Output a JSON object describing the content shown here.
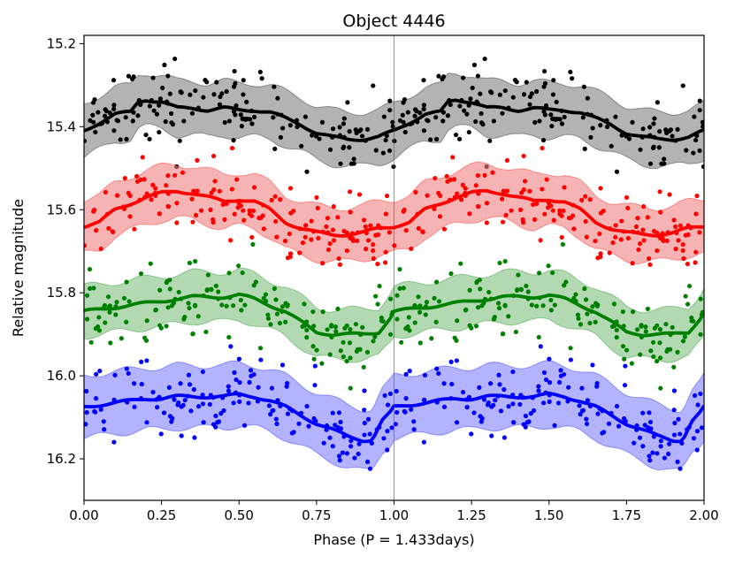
{
  "chart_data": {
    "type": "scatter",
    "title": "Object 4446",
    "xlabel": "Phase (P = 1.433days)",
    "ylabel": "Relative magnitude",
    "xlim": [
      0,
      2
    ],
    "ylim": [
      16.3,
      15.18
    ],
    "y_inverted": true,
    "xticks": [
      "0.00",
      "0.25",
      "0.50",
      "0.75",
      "1.00",
      "1.25",
      "1.50",
      "1.75",
      "2.00"
    ],
    "yticks": [
      "15.2",
      "15.4",
      "15.6",
      "15.8",
      "16.0",
      "16.2"
    ],
    "grid": false,
    "phase_divider_x": 1.0,
    "series": [
      {
        "color": "#000000",
        "band_color": "#808080",
        "curve_phase": [
          0.0,
          0.05,
          0.1,
          0.15,
          0.175,
          0.2,
          0.25,
          0.3,
          0.35,
          0.4,
          0.45,
          0.5,
          0.55,
          0.6,
          0.65,
          0.7,
          0.75,
          0.8,
          0.85,
          0.9,
          0.95,
          1.0
        ],
        "curve_mag": [
          15.41,
          15.39,
          15.37,
          15.365,
          15.34,
          15.335,
          15.34,
          15.355,
          15.355,
          15.36,
          15.355,
          15.36,
          15.36,
          15.365,
          15.38,
          15.395,
          15.415,
          15.425,
          15.43,
          15.43,
          15.425,
          15.41
        ],
        "band_halfwidth": 0.065
      },
      {
        "color": "#ff0000",
        "band_color": "#f08080",
        "curve_phase": [
          0.0,
          0.05,
          0.1,
          0.15,
          0.2,
          0.25,
          0.3,
          0.35,
          0.4,
          0.45,
          0.5,
          0.55,
          0.6,
          0.65,
          0.7,
          0.75,
          0.8,
          0.85,
          0.9,
          0.95,
          1.0
        ],
        "curve_mag": [
          15.64,
          15.63,
          15.6,
          15.585,
          15.57,
          15.56,
          15.555,
          15.56,
          15.57,
          15.58,
          15.575,
          15.58,
          15.6,
          15.63,
          15.645,
          15.655,
          15.66,
          15.66,
          15.655,
          15.645,
          15.64
        ],
        "band_halfwidth": 0.065
      },
      {
        "color": "#008000",
        "band_color": "#80c080",
        "curve_phase": [
          0.0,
          0.05,
          0.1,
          0.15,
          0.2,
          0.25,
          0.3,
          0.35,
          0.4,
          0.45,
          0.5,
          0.55,
          0.6,
          0.65,
          0.7,
          0.75,
          0.8,
          0.85,
          0.9,
          0.95,
          1.0
        ],
        "curve_mag": [
          15.845,
          15.84,
          15.835,
          15.83,
          15.825,
          15.82,
          15.815,
          15.81,
          15.81,
          15.81,
          15.805,
          15.815,
          15.83,
          15.845,
          15.87,
          15.895,
          15.9,
          15.9,
          15.9,
          15.895,
          15.85
        ],
        "band_halfwidth": 0.06
      },
      {
        "color": "#0000ff",
        "band_color": "#8080ff",
        "curve_phase": [
          0.0,
          0.05,
          0.1,
          0.15,
          0.2,
          0.25,
          0.3,
          0.35,
          0.4,
          0.45,
          0.5,
          0.55,
          0.6,
          0.65,
          0.7,
          0.75,
          0.8,
          0.85,
          0.9,
          0.93,
          0.96,
          1.0
        ],
        "curve_mag": [
          16.075,
          16.07,
          16.065,
          16.06,
          16.055,
          16.055,
          16.05,
          16.05,
          16.05,
          16.05,
          16.045,
          16.05,
          16.06,
          16.075,
          16.095,
          16.115,
          16.13,
          16.145,
          16.155,
          16.155,
          16.11,
          16.08
        ],
        "band_halfwidth": 0.075
      }
    ]
  }
}
